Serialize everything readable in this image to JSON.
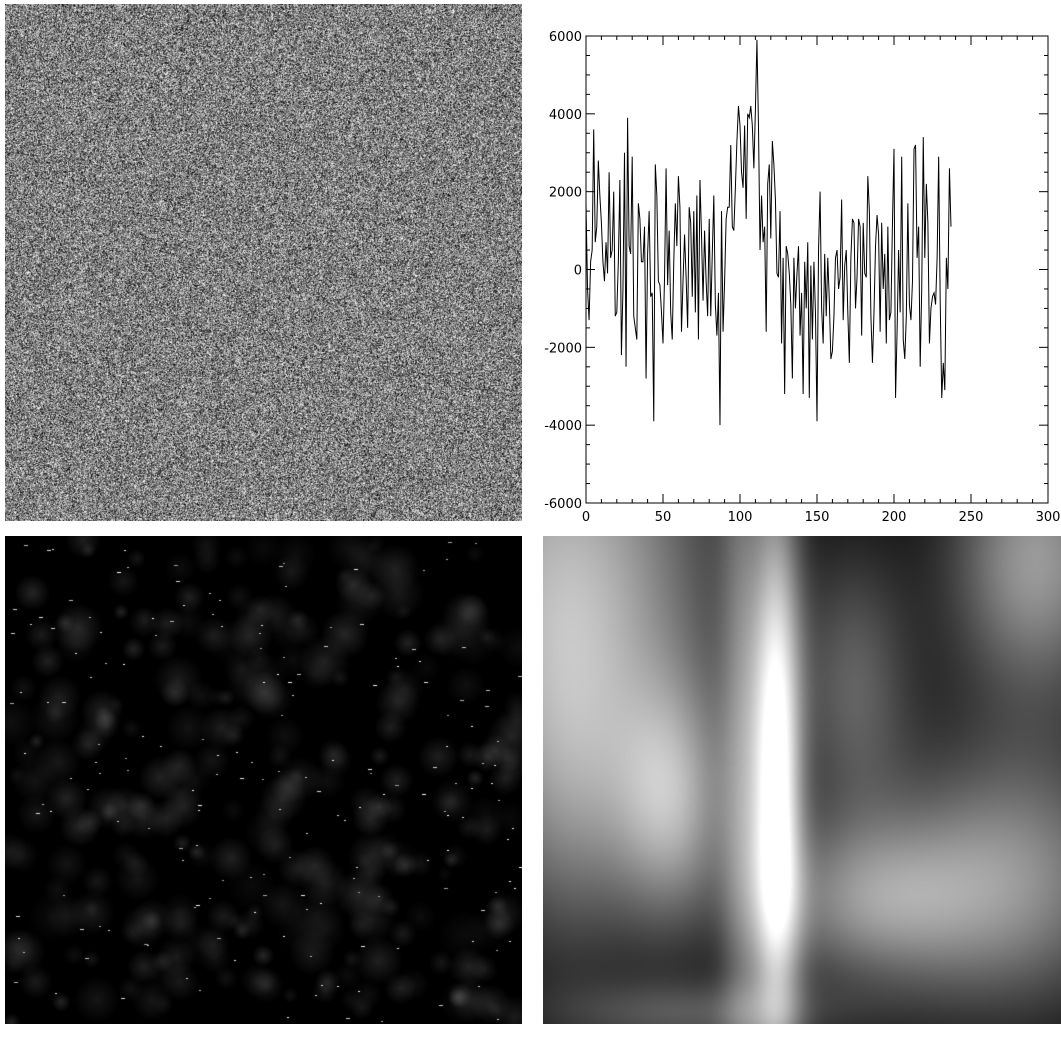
{
  "panels": {
    "top_left": {
      "name": "random-noise-image"
    },
    "bottom_left": {
      "name": "spotted-dark-image"
    },
    "bottom_right": {
      "name": "smoothed-blob-image"
    }
  },
  "chart_data": {
    "type": "line",
    "title": "",
    "xlabel": "",
    "ylabel": "",
    "xlim": [
      0,
      300
    ],
    "ylim": [
      -6000,
      6000
    ],
    "xticks": [
      0,
      50,
      100,
      150,
      200,
      250,
      300
    ],
    "yticks": [
      -6000,
      -4000,
      -2000,
      0,
      2000,
      4000,
      6000
    ],
    "xtick_labels": [
      "0",
      "50",
      "100",
      "150",
      "200",
      "250",
      "300"
    ],
    "ytick_labels": [
      "-6000",
      "-4000",
      "-2000",
      "0",
      "2000",
      "4000",
      "6000"
    ],
    "grid": false,
    "line_color": "#000000",
    "series": [
      {
        "x_start": 0,
        "x_step": 1,
        "values": [
          1700,
          -500,
          -1300,
          200,
          500,
          3600,
          700,
          1100,
          2800,
          1900,
          1200,
          200,
          -300,
          700,
          -100,
          2500,
          300,
          500,
          2000,
          -1200,
          -1100,
          200,
          2300,
          -2200,
          -500,
          3000,
          -2500,
          3900,
          600,
          400,
          2900,
          -1200,
          -1500,
          -1800,
          1700,
          1300,
          200,
          200,
          1100,
          -2800,
          400,
          1500,
          -700,
          -600,
          -3900,
          2700,
          1900,
          -300,
          -400,
          -1100,
          -1900,
          -200,
          2600,
          -400,
          1000,
          -1100,
          -1800,
          200,
          1700,
          600,
          2400,
          1600,
          -1600,
          -300,
          900,
          -200,
          -1500,
          1600,
          1200,
          -700,
          1500,
          -1100,
          1900,
          -1800,
          2300,
          900,
          -800,
          1000,
          -300,
          -1200,
          1300,
          -1200,
          400,
          1900,
          -900,
          -1700,
          -600,
          -4000,
          1500,
          -1600,
          -300,
          1300,
          1600,
          1600,
          3200,
          1100,
          1000,
          2100,
          3300,
          4200,
          3700,
          2500,
          2100,
          3700,
          1300,
          4000,
          3900,
          4200,
          3700,
          2600,
          4100,
          5900,
          3700,
          500,
          1900,
          700,
          1100,
          -1600,
          2200,
          2700,
          800,
          3300,
          2700,
          1800,
          -100,
          -200,
          1500,
          -1900,
          300,
          -3200,
          600,
          400,
          -100,
          -900,
          -2800,
          300,
          -1000,
          -100,
          600,
          -1700,
          -600,
          -3200,
          200,
          -1000,
          700,
          -3300,
          100,
          -1800,
          200,
          -1100,
          -3900,
          500,
          2000,
          -1000,
          -1900,
          400,
          -1200,
          300,
          -800,
          -2300,
          -2100,
          -1200,
          300,
          500,
          -500,
          -200,
          1800,
          -1300,
          100,
          500,
          -1100,
          -2400,
          300,
          1300,
          1200,
          -1000,
          -200,
          1300,
          1100,
          -1700,
          1200,
          -100,
          -200,
          2400,
          1500,
          -1200,
          -2400,
          -1100,
          600,
          1400,
          900,
          -1600,
          1200,
          -500,
          400,
          -1900,
          1100,
          -1300,
          -1100,
          1200,
          3100,
          -3300,
          -1600,
          500,
          -1100,
          2900,
          -1800,
          -2300,
          -1200,
          1700,
          -900,
          -1300,
          -300,
          3100,
          3200,
          300,
          1100,
          -2500,
          -500,
          3400,
          300,
          2200,
          1200,
          -1900,
          -1000,
          -700,
          -600,
          -900,
          300,
          2900,
          -800,
          -3300,
          -2400,
          -3100,
          300,
          -500,
          2600,
          1100
        ]
      }
    ]
  }
}
